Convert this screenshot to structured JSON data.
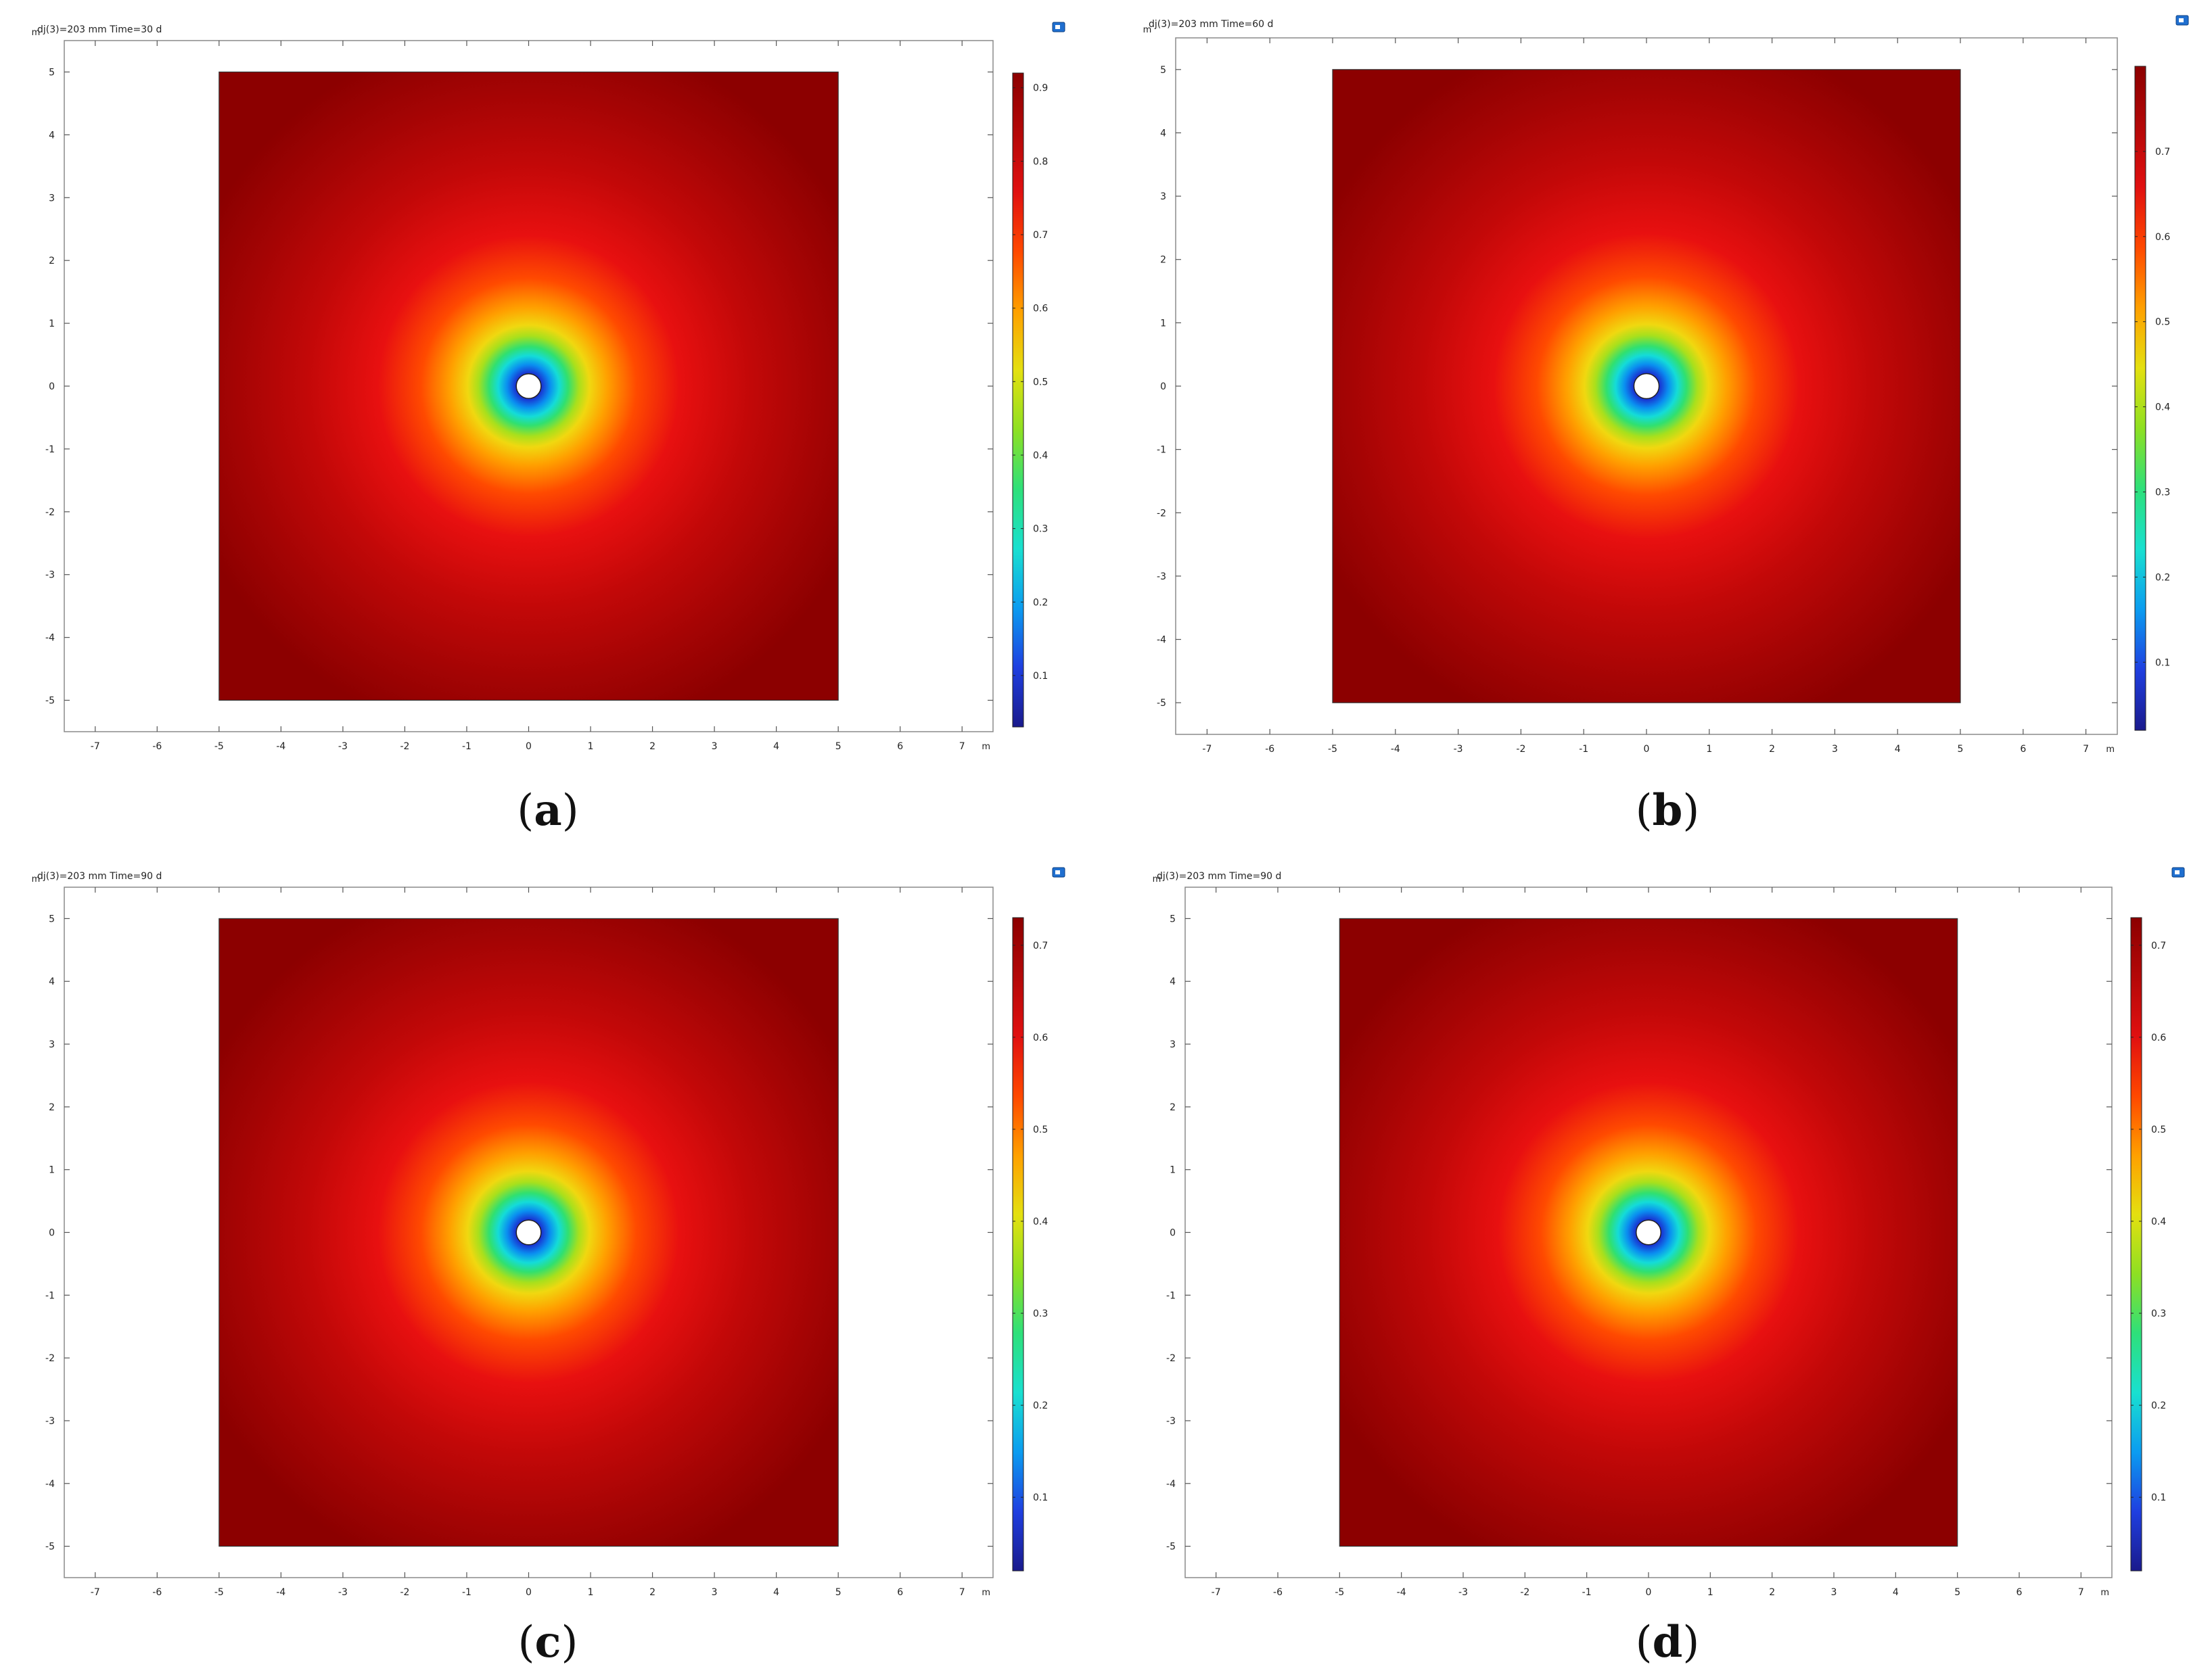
{
  "chart_data": [
    {
      "type": "heatmap",
      "panel": "a",
      "caption_letter": "a",
      "title": "dj(3)=203 mm Time=30 d",
      "x_unit": "m",
      "y_unit": "m",
      "xlim": [
        -7.5,
        7.5
      ],
      "ylim": [
        -5.5,
        5.5
      ],
      "x_ticks": [
        -7,
        -6,
        -5,
        -4,
        -3,
        -2,
        -1,
        0,
        1,
        2,
        3,
        4,
        5,
        6,
        7
      ],
      "y_ticks": [
        -5,
        -4,
        -3,
        -2,
        -1,
        0,
        1,
        2,
        3,
        4,
        5
      ],
      "domain": {
        "x": [
          -5,
          5
        ],
        "y": [
          -5,
          5
        ]
      },
      "hole_radius": 0.2,
      "colorbar": {
        "min": 0.03,
        "max": 0.92,
        "ticks": [
          0.1,
          0.2,
          0.3,
          0.4,
          0.5,
          0.6,
          0.7,
          0.8,
          0.9
        ]
      }
    },
    {
      "type": "heatmap",
      "panel": "b",
      "caption_letter": "b",
      "title": "dj(3)=203 mm Time=60 d",
      "x_unit": "m",
      "y_unit": "m",
      "xlim": [
        -7.5,
        7.5
      ],
      "ylim": [
        -5.5,
        5.5
      ],
      "x_ticks": [
        -7,
        -6,
        -5,
        -4,
        -3,
        -2,
        -1,
        0,
        1,
        2,
        3,
        4,
        5,
        6,
        7
      ],
      "y_ticks": [
        -5,
        -4,
        -3,
        -2,
        -1,
        0,
        1,
        2,
        3,
        4,
        5
      ],
      "domain": {
        "x": [
          -5,
          5
        ],
        "y": [
          -5,
          5
        ]
      },
      "hole_radius": 0.2,
      "colorbar": {
        "min": 0.02,
        "max": 0.8,
        "ticks": [
          0.1,
          0.2,
          0.3,
          0.4,
          0.5,
          0.6,
          0.7
        ]
      }
    },
    {
      "type": "heatmap",
      "panel": "c",
      "caption_letter": "c",
      "title": "dj(3)=203 mm Time=90 d",
      "x_unit": "m",
      "y_unit": "m",
      "xlim": [
        -7.5,
        7.5
      ],
      "ylim": [
        -5.5,
        5.5
      ],
      "x_ticks": [
        -7,
        -6,
        -5,
        -4,
        -3,
        -2,
        -1,
        0,
        1,
        2,
        3,
        4,
        5,
        6,
        7
      ],
      "y_ticks": [
        -5,
        -4,
        -3,
        -2,
        -1,
        0,
        1,
        2,
        3,
        4,
        5
      ],
      "domain": {
        "x": [
          -5,
          5
        ],
        "y": [
          -5,
          5
        ]
      },
      "hole_radius": 0.2,
      "colorbar": {
        "min": 0.02,
        "max": 0.73,
        "ticks": [
          0.1,
          0.2,
          0.3,
          0.4,
          0.5,
          0.6,
          0.7
        ]
      }
    },
    {
      "type": "heatmap",
      "panel": "d",
      "caption_letter": "d",
      "title": "dj(3)=203 mm Time=90 d",
      "x_unit": "m",
      "y_unit": "m",
      "xlim": [
        -7.5,
        7.5
      ],
      "ylim": [
        -5.5,
        5.5
      ],
      "x_ticks": [
        -7,
        -6,
        -5,
        -4,
        -3,
        -2,
        -1,
        0,
        1,
        2,
        3,
        4,
        5,
        6,
        7
      ],
      "y_ticks": [
        -5,
        -4,
        -3,
        -2,
        -1,
        0,
        1,
        2,
        3,
        4,
        5
      ],
      "domain": {
        "x": [
          -5,
          5
        ],
        "y": [
          -5,
          5
        ]
      },
      "hole_radius": 0.2,
      "colorbar": {
        "min": 0.02,
        "max": 0.73,
        "ticks": [
          0.1,
          0.2,
          0.3,
          0.4,
          0.5,
          0.6,
          0.7
        ]
      }
    }
  ],
  "colormap": [
    "#1a1a8c",
    "#1f3fe0",
    "#0b9cf0",
    "#19e0d0",
    "#2ee07a",
    "#8ee022",
    "#e4e010",
    "#ffa000",
    "#ff4800",
    "#e01010",
    "#b40808",
    "#8c0000"
  ],
  "colors": {
    "background": "#ffffff",
    "axis_frame": "#8a8a8a",
    "hole_fill": "#ffffff",
    "hole_stroke": "#222222",
    "toolbar_icon": "#1f6fd0"
  }
}
